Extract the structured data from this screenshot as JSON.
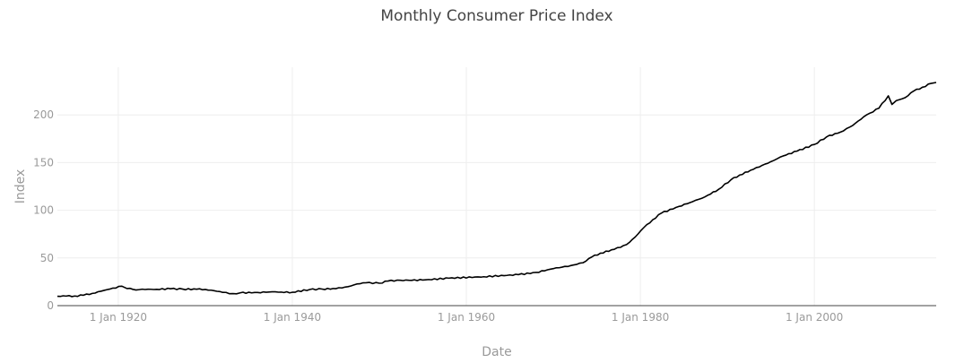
{
  "chart_data": {
    "type": "line",
    "title": "Monthly Consumer Price Index",
    "xlabel": "Date",
    "ylabel": "Index",
    "x_type": "date",
    "xlim": [
      "1913-01-01",
      "2014-01-01"
    ],
    "ylim": [
      0,
      250
    ],
    "grid": true,
    "legend": "none",
    "line_color": "#000000",
    "x_ticks": [
      {
        "date": "1920-01-01",
        "label": "1 Jan 1920"
      },
      {
        "date": "1940-01-01",
        "label": "1 Jan 1940"
      },
      {
        "date": "1960-01-01",
        "label": "1 Jan 1960"
      },
      {
        "date": "1980-01-01",
        "label": "1 Jan 1980"
      },
      {
        "date": "2000-01-01",
        "label": "1 Jan 2000"
      }
    ],
    "y_ticks": [
      {
        "value": 0,
        "label": "0"
      },
      {
        "value": 50,
        "label": "50"
      },
      {
        "value": 100,
        "label": "100"
      },
      {
        "value": 150,
        "label": "150"
      },
      {
        "value": 200,
        "label": "200"
      }
    ],
    "series": [
      {
        "x": [
          "1913-01-01",
          "1914-01-01",
          "1915-01-01",
          "1916-01-01",
          "1917-01-01",
          "1918-01-01",
          "1919-01-01",
          "1920-06-01",
          "1921-01-01",
          "1921-09-01",
          "1922-06-01",
          "1923-06-01",
          "1924-06-01",
          "1926-01-01",
          "1927-06-01",
          "1929-01-01",
          "1930-01-01",
          "1931-01-01",
          "1932-01-01",
          "1933-03-01",
          "1934-01-01",
          "1936-01-01",
          "1937-09-01",
          "1938-06-01",
          "1940-01-01",
          "1942-01-01",
          "1943-06-01",
          "1945-01-01",
          "1946-06-01",
          "1947-06-01",
          "1948-07-01",
          "1950-01-01",
          "1951-01-01",
          "1952-06-01",
          "1955-01-01",
          "1958-01-01",
          "1962-01-01",
          "1966-01-01",
          "1968-01-01",
          "1970-01-01",
          "1972-01-01",
          "1973-06-01",
          "1974-06-01",
          "1975-06-01",
          "1977-01-01",
          "1978-06-01",
          "1979-06-01",
          "1980-06-01",
          "1981-06-01",
          "1982-06-01",
          "1984-06-01",
          "1986-01-01",
          "1987-06-01",
          "1989-01-01",
          "1990-06-01",
          "1991-06-01",
          "1993-01-01",
          "1995-01-01",
          "1996-06-01",
          "1998-01-01",
          "2000-01-01",
          "2001-06-01",
          "2003-01-01",
          "2004-06-01",
          "2005-09-01",
          "2006-06-01",
          "2007-06-01",
          "2008-07-01",
          "2008-12-01",
          "2009-06-01",
          "2010-06-01",
          "2011-06-01",
          "2012-06-01",
          "2013-06-01",
          "2014-01-01"
        ],
        "y": [
          9.8,
          10.0,
          10.1,
          10.9,
          12.8,
          15.1,
          17.3,
          20.4,
          17.9,
          17.1,
          16.8,
          17.2,
          17.1,
          17.7,
          17.3,
          17.2,
          17.0,
          15.7,
          13.9,
          12.6,
          13.4,
          13.8,
          14.5,
          14.1,
          14.0,
          16.9,
          17.4,
          17.8,
          19.9,
          22.7,
          24.0,
          23.5,
          25.8,
          26.6,
          26.8,
          28.8,
          30.3,
          32.5,
          34.8,
          38.8,
          42.0,
          45.0,
          51.0,
          55.0,
          59.0,
          64.0,
          72.0,
          82.0,
          90.0,
          97.0,
          104.0,
          109.0,
          114.0,
          122.0,
          132.0,
          137.0,
          143.0,
          151.0,
          157.0,
          162.0,
          169.0,
          177.0,
          182.0,
          189.0,
          198.0,
          202.0,
          207.0,
          220.0,
          211.0,
          215.0,
          218.0,
          225.0,
          229.0,
          233.0,
          234.0
        ]
      }
    ]
  }
}
